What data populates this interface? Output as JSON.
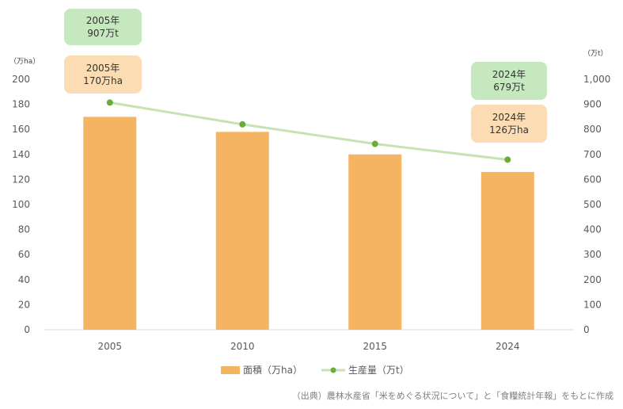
{
  "chart_data": {
    "type": "bar+line",
    "categories": [
      "2005",
      "2010",
      "2015",
      "2024"
    ],
    "series": [
      {
        "name": "面積（万ha）",
        "type": "bar",
        "axis": "left",
        "color": "#f5b461",
        "values": [
          170,
          158,
          140,
          126
        ]
      },
      {
        "name": "生産量（万t）",
        "type": "line",
        "axis": "right",
        "color": "#c6e3b4",
        "marker_color": "#6aab3d",
        "values": [
          907,
          820,
          742,
          679
        ]
      }
    ],
    "y_left": {
      "unit": "（万ha）",
      "ylim": [
        0,
        200
      ],
      "ticks": [
        "0",
        "20",
        "40",
        "60",
        "80",
        "100",
        "120",
        "140",
        "160",
        "180",
        "200"
      ]
    },
    "y_right": {
      "unit": "（万t）",
      "ylim": [
        0,
        1000
      ],
      "ticks": [
        "0",
        "100",
        "200",
        "300",
        "400",
        "500",
        "600",
        "700",
        "800",
        "900",
        "1,000"
      ]
    },
    "grid": false,
    "legend_position": "bottom"
  },
  "callouts": {
    "p2005": "2005年\n907万t",
    "a2005": "2005年\n170万ha",
    "p2024": "2024年\n679万t",
    "a2024": "2024年\n126万ha"
  },
  "source": "（出典）農林水産省「米をめぐる状況について」と「食糧統計年報」をもとに作成"
}
